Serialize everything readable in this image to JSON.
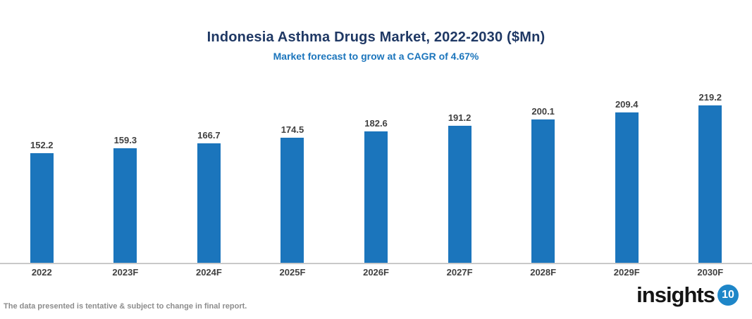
{
  "chart_data": {
    "type": "bar",
    "title": "Indonesia Asthma Drugs Market, 2022-2030 ($Mn)",
    "subtitle": "Market forecast to grow at a CAGR of 4.67%",
    "categories": [
      "2022",
      "2023F",
      "2024F",
      "2025F",
      "2026F",
      "2027F",
      "2028F",
      "2029F",
      "2030F"
    ],
    "values": [
      152.2,
      159.3,
      166.7,
      174.5,
      182.6,
      191.2,
      200.1,
      209.4,
      219.2
    ],
    "value_labels": [
      "152.2",
      "159.3",
      "166.7",
      "174.5",
      "182.6",
      "191.2",
      "200.1",
      "209.4",
      "219.2"
    ],
    "xlabel": "",
    "ylabel": "",
    "ylim": [
      0,
      230
    ],
    "grid": false,
    "legend": "none"
  },
  "footer": {
    "disclaimer": "The data presented is tentative & subject to change in final report.",
    "logo_text": "insights",
    "logo_badge": "10"
  },
  "colors": {
    "title": "#1F3864",
    "subtitle": "#1B75BC",
    "bar": "#1B75BC",
    "value_label": "#404040",
    "axis_label": "#404040",
    "axis_line": "#C9C9C9",
    "disclaimer": "#8C8C8C",
    "logo_badge_bg": "#1E86C8"
  }
}
